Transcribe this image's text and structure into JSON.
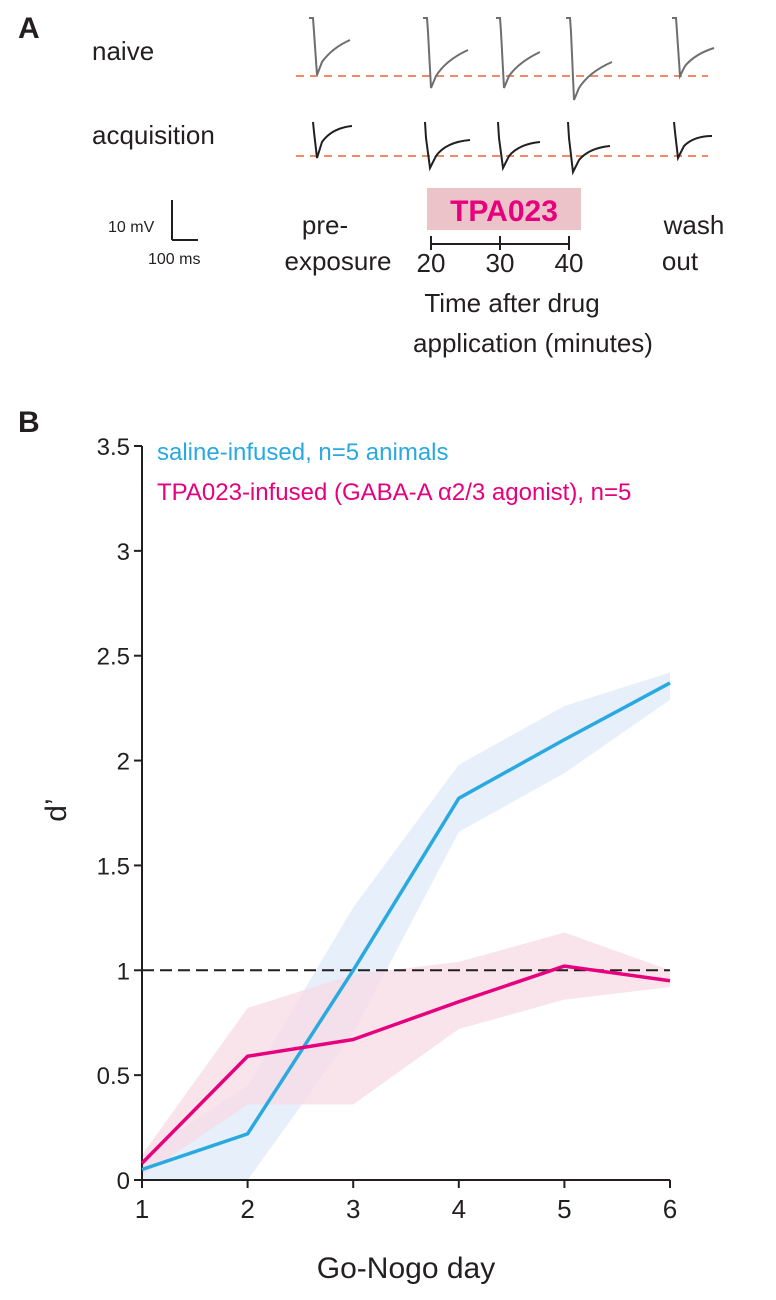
{
  "panel_a": {
    "label": "A",
    "row_labels": [
      "naive",
      "acquisition"
    ],
    "scale_bar": {
      "voltage": "10 mV",
      "time": "100 ms"
    },
    "drug_badge": "TPA023",
    "pre_label": [
      "pre-",
      "exposure"
    ],
    "wash_label": [
      "wash",
      "out"
    ],
    "time_ticks": [
      "20",
      "30",
      "40"
    ],
    "time_axis_label": [
      "Time after drug",
      "application (minutes)"
    ],
    "colors": {
      "naive_trace": "#6d6e71",
      "acq_trace": "#231f20",
      "baseline": "#f08a6a",
      "badge_bg": "#ebc3c9",
      "badge_text": "#e6007e"
    }
  },
  "panel_b": {
    "label": "B"
  },
  "chart_data": {
    "type": "line",
    "xlabel": "Go-Nogo day",
    "ylabel": "d’",
    "x": [
      1,
      2,
      3,
      4,
      5,
      6
    ],
    "xlim": [
      1,
      6
    ],
    "ylim": [
      0,
      3.5
    ],
    "xticks": [
      1,
      2,
      3,
      4,
      5,
      6
    ],
    "yticks": [
      0,
      0.5,
      1,
      1.5,
      2,
      2.5,
      3,
      3.5
    ],
    "ytick_labels": [
      "0",
      "0.5",
      "1",
      "1.5",
      "2",
      "2.5",
      "3",
      "3.5"
    ],
    "reference_line": {
      "y": 1,
      "style": "dashed"
    },
    "legend_position": "top-left",
    "series": [
      {
        "name": "saline-infused, n=5 animals",
        "color": "#29a9e0",
        "band_color": "#dfeaf8",
        "values": [
          0.05,
          0.22,
          1.0,
          1.82,
          2.1,
          2.37
        ],
        "upper": [
          0.12,
          0.45,
          1.3,
          1.98,
          2.26,
          2.42
        ],
        "lower": [
          0.0,
          0.0,
          0.7,
          1.66,
          1.94,
          2.29
        ]
      },
      {
        "name": "TPA023-infused (GABA-A α2/3 agonist), n=5",
        "color": "#e6007e",
        "band_color": "#f7dbe6",
        "values": [
          0.08,
          0.59,
          0.67,
          0.85,
          1.02,
          0.95
        ],
        "upper": [
          0.12,
          0.82,
          0.98,
          1.04,
          1.18,
          1.0
        ],
        "lower": [
          0.02,
          0.36,
          0.36,
          0.72,
          0.86,
          0.92
        ]
      }
    ]
  }
}
